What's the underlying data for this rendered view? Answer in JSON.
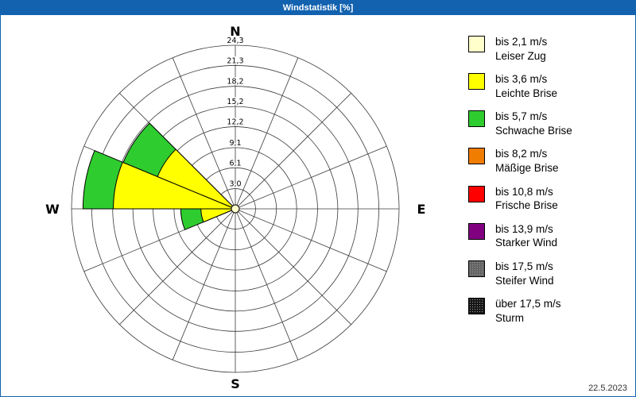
{
  "window": {
    "title": "Windstatistik [%]"
  },
  "chart_data": {
    "type": "windrose",
    "title": "Windstatistik [%]",
    "unit": "%",
    "compass_labels": {
      "north": "N",
      "east": "E",
      "south": "S",
      "west": "W"
    },
    "ring_values": [
      3.0,
      6.1,
      9.1,
      12.2,
      15.2,
      18.2,
      21.3,
      24.3
    ],
    "ring_labels": [
      "3,0",
      "6,1",
      "9,1",
      "12,2",
      "15,2",
      "18,2",
      "21,3",
      "24,3"
    ],
    "max_value": 24.3,
    "num_sectors": 16,
    "grid_color": "#3a3a3a",
    "speed_classes": [
      {
        "label": "bis 2,1 m/s",
        "name": "Leiser Zug",
        "color": "#ffffcc",
        "speckled": false
      },
      {
        "label": "bis 3,6 m/s",
        "name": "Leichte Brise",
        "color": "#ffff00",
        "speckled": false
      },
      {
        "label": "bis 5,7 m/s",
        "name": "Schwache Brise",
        "color": "#2fcc2f",
        "speckled": false
      },
      {
        "label": "bis 8,2 m/s",
        "name": "Mäßige Brise",
        "color": "#f07d00",
        "speckled": false
      },
      {
        "label": "bis 10,8 m/s",
        "name": "Frische Brise",
        "color": "#ff0000",
        "speckled": false
      },
      {
        "label": "bis 13,9 m/s",
        "name": "Starker Wind",
        "color": "#800080",
        "speckled": false
      },
      {
        "label": "bis 17,5 m/s",
        "name": "Steifer Wind",
        "color": "#636363",
        "speckled": true
      },
      {
        "label": "über 17,5 m/s",
        "name": "Sturm",
        "color": "#141414",
        "speckled": true
      }
    ],
    "petals": [
      {
        "center_deg": 281.25,
        "width_deg": 22.5,
        "values_pct": [
          0.5,
          17.6,
          4.5,
          0,
          0,
          0,
          0,
          0
        ]
      },
      {
        "center_deg": 303.75,
        "width_deg": 22.5,
        "values_pct": [
          0.5,
          12.0,
          5.5,
          0,
          0,
          0,
          0,
          0
        ]
      },
      {
        "center_deg": 258.75,
        "width_deg": 22.5,
        "values_pct": [
          0.5,
          4.6,
          3.0,
          0,
          0,
          0,
          0,
          0
        ]
      }
    ],
    "date_label": "22.5.2023"
  }
}
